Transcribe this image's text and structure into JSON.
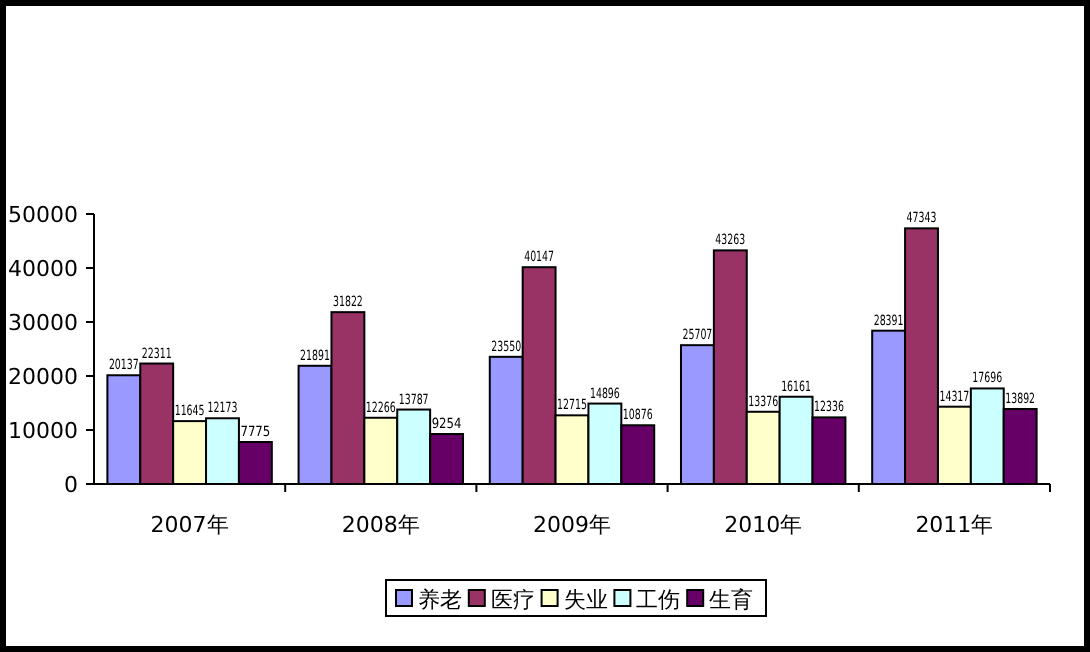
{
  "chart_data": {
    "type": "bar",
    "categories": [
      "2007年",
      "2008年",
      "2009年",
      "2010年",
      "2011年"
    ],
    "series": [
      {
        "name": "养老",
        "color": "#9999ff",
        "values": [
          20137,
          21891,
          23550,
          25707,
          28391
        ]
      },
      {
        "name": "医疗",
        "color": "#993366",
        "values": [
          22311,
          31822,
          40147,
          43263,
          47343
        ]
      },
      {
        "name": "失业",
        "color": "#ffffcc",
        "values": [
          11645,
          12266,
          12715,
          13376,
          14317
        ]
      },
      {
        "name": "工伤",
        "color": "#ccffff",
        "values": [
          12173,
          13787,
          14896,
          16161,
          17696
        ]
      },
      {
        "name": "生育",
        "color": "#660066",
        "values": [
          7775,
          9254,
          10876,
          12336,
          13892
        ]
      }
    ],
    "ylim": [
      0,
      50000
    ],
    "yticks": [
      0,
      10000,
      20000,
      30000,
      40000,
      50000
    ],
    "data_labels": true,
    "legend": "bottom",
    "grid": false
  }
}
